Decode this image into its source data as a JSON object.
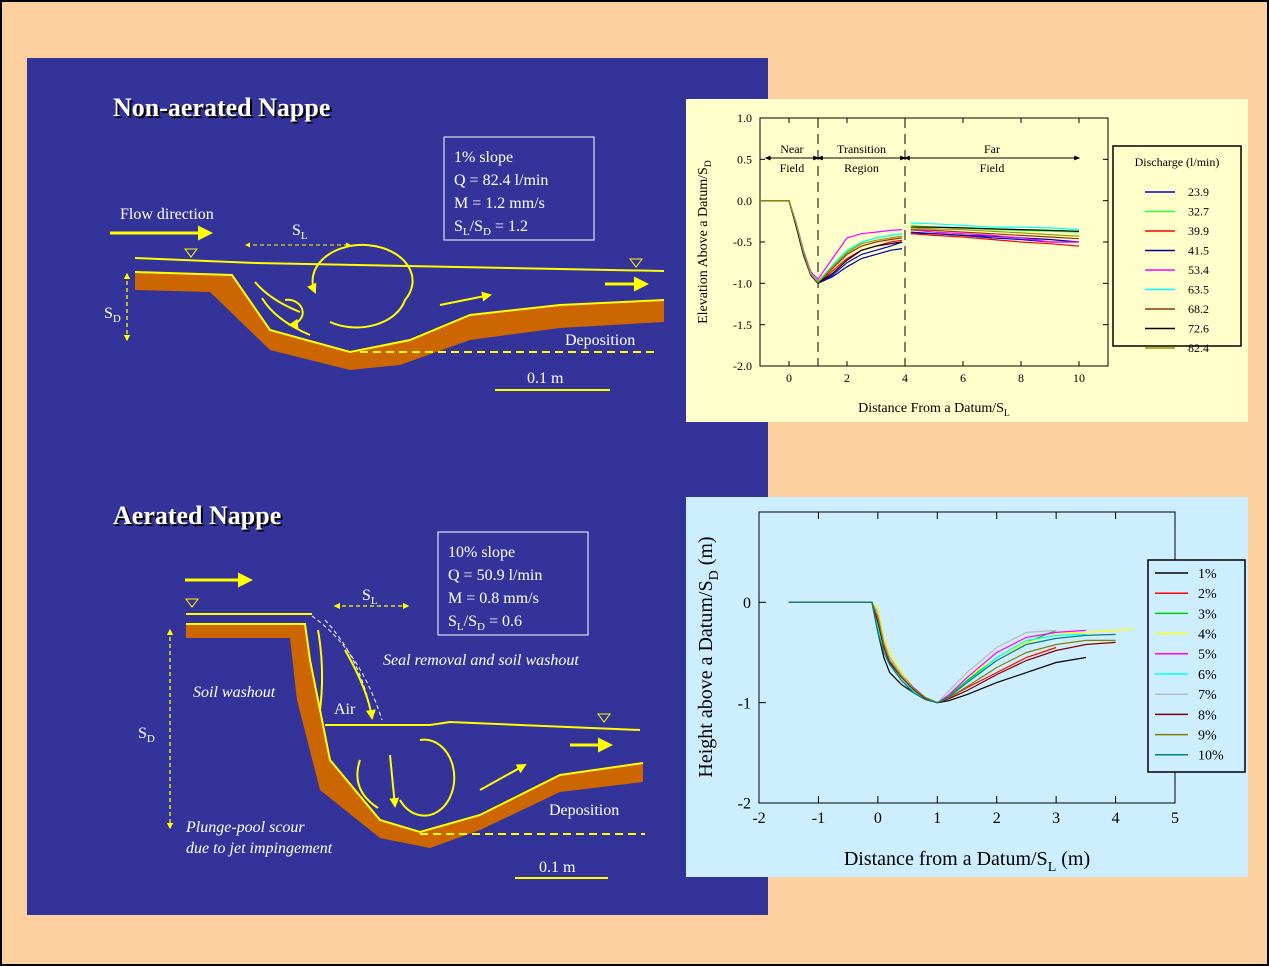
{
  "diagrams": [
    {
      "title": "Non-aerated Nappe",
      "info": [
        "1% slope",
        "Q = 82.4 l/min",
        "M = 1.2 mm/s"
      ],
      "ratio": [
        "S",
        "L",
        "/S",
        "D",
        " = 1.2"
      ],
      "flow": "Flow direction",
      "sl": [
        "S",
        "L"
      ],
      "sd": [
        "S",
        "D"
      ],
      "deposition": "Deposition",
      "scale": "0.1 m"
    },
    {
      "title": "Aerated Nappe",
      "info": [
        "10% slope",
        "Q = 50.9 l/min",
        "M = 0.8 mm/s"
      ],
      "ratio": [
        "S",
        "L",
        "/S",
        "D",
        " = 0.6"
      ],
      "sl": [
        "S",
        "L"
      ],
      "sd": [
        "S",
        "D"
      ],
      "notes": [
        "Seal removal and soil washout",
        "Soil washout",
        "Air",
        "Plunge-pool scour",
        "due to jet impingement"
      ],
      "deposition": "Deposition",
      "scale": "0.1 m"
    }
  ],
  "chart_data": [
    {
      "type": "line",
      "background": "#ffffcc",
      "xlabel": {
        "text": "Distance From a Datum/S",
        "sub": "L"
      },
      "ylabel": {
        "text": "Elevation Above a Datum/S",
        "sub": "D"
      },
      "legend_title": "Discharge (l/min)",
      "xlim": [
        -1,
        11
      ],
      "xticks": [
        0,
        2,
        4,
        6,
        8,
        10
      ],
      "ylim": [
        -2,
        1
      ],
      "yticks": [
        {
          "value": -2,
          "label": "-2.0"
        },
        -1.5,
        {
          "value": -1,
          "label": "-1.0"
        },
        -0.5,
        {
          "value": 0,
          "label": "0.0"
        },
        0.5,
        {
          "value": 1,
          "label": "1.0"
        }
      ],
      "vlines": [
        1,
        4
      ],
      "regions": [
        {
          "label": [
            "Near",
            "Field"
          ],
          "from": -0.8,
          "to": 1
        },
        {
          "label": [
            "Transition",
            "Region"
          ],
          "from": 1,
          "to": 4
        },
        {
          "label": [
            "Far",
            "Field"
          ],
          "from": 4,
          "to": 10
        }
      ],
      "x": [
        -1,
        0,
        0.25,
        0.5,
        0.75,
        1,
        1.5,
        2,
        2.5,
        3,
        3.5,
        3.9,
        4,
        4.2,
        5,
        6,
        7,
        8,
        9,
        10
      ],
      "series": [
        {
          "name": "23.9",
          "color": "#0000cc",
          "values": [
            0,
            0,
            -0.3,
            -0.65,
            -0.9,
            -1.0,
            -0.9,
            -0.75,
            -0.65,
            -0.6,
            -0.55,
            -0.5,
            null,
            -0.4,
            -0.4,
            -0.42,
            -0.45,
            -0.47,
            -0.5,
            -0.5
          ]
        },
        {
          "name": "32.7",
          "color": "#33ff33",
          "values": [
            0,
            0,
            -0.28,
            -0.62,
            -0.88,
            -0.98,
            -0.8,
            -0.62,
            -0.5,
            -0.45,
            -0.42,
            -0.4,
            null,
            -0.3,
            -0.32,
            -0.33,
            -0.35,
            -0.36,
            -0.37,
            -0.38
          ]
        },
        {
          "name": "39.9",
          "color": "#ff0000",
          "values": [
            0,
            0,
            -0.3,
            -0.64,
            -0.9,
            -1.0,
            -0.85,
            -0.7,
            -0.6,
            -0.55,
            -0.5,
            -0.48,
            null,
            -0.4,
            -0.42,
            -0.44,
            -0.47,
            -0.5,
            -0.52,
            -0.55
          ]
        },
        {
          "name": "41.5",
          "color": "#000099",
          "values": [
            0,
            0,
            -0.32,
            -0.66,
            -0.9,
            -1.0,
            -0.92,
            -0.8,
            -0.7,
            -0.65,
            -0.6,
            -0.58,
            null,
            -0.38,
            -0.4,
            -0.42,
            -0.43,
            -0.45,
            -0.47,
            -0.5
          ]
        },
        {
          "name": "53.4",
          "color": "#ff00ff",
          "values": [
            0,
            0,
            -0.27,
            -0.6,
            -0.86,
            -0.95,
            -0.7,
            -0.45,
            -0.4,
            -0.38,
            -0.36,
            -0.35,
            null,
            -0.35,
            -0.38,
            -0.4,
            -0.42,
            -0.45,
            -0.5,
            -0.5
          ]
        },
        {
          "name": "63.5",
          "color": "#00ffff",
          "values": [
            0,
            0,
            -0.28,
            -0.62,
            -0.88,
            -0.98,
            -0.78,
            -0.6,
            -0.5,
            -0.45,
            -0.42,
            -0.4,
            null,
            -0.27,
            -0.28,
            -0.3,
            -0.32,
            -0.32,
            -0.33,
            -0.35
          ]
        },
        {
          "name": "68.2",
          "color": "#993300",
          "values": [
            0,
            0,
            -0.3,
            -0.64,
            -0.9,
            -1.0,
            -0.82,
            -0.65,
            -0.55,
            -0.5,
            -0.47,
            -0.45,
            null,
            -0.35,
            -0.36,
            -0.38,
            -0.4,
            -0.42,
            -0.44,
            -0.46
          ]
        },
        {
          "name": "72.6",
          "color": "#000000",
          "values": [
            0,
            0,
            -0.31,
            -0.65,
            -0.9,
            -1.0,
            -0.88,
            -0.72,
            -0.6,
            -0.55,
            -0.52,
            -0.5,
            null,
            -0.32,
            -0.32,
            -0.33,
            -0.34,
            -0.35,
            -0.36,
            -0.37
          ]
        },
        {
          "name": "82.4",
          "color": "#999900",
          "values": [
            0,
            0,
            -0.29,
            -0.63,
            -0.89,
            -0.99,
            -0.8,
            -0.63,
            -0.52,
            -0.48,
            -0.45,
            -0.43,
            null,
            -0.33,
            -0.34,
            -0.35,
            -0.37,
            -0.39,
            -0.41,
            -0.43
          ]
        }
      ]
    },
    {
      "type": "line",
      "background": "#cceeff",
      "xlabel": {
        "text": "Distance from a Datum/S",
        "sub": "L",
        "after": " (m)"
      },
      "ylabel": {
        "text": "Height above a Datum/S",
        "sub": "D",
        "after": " (m)"
      },
      "xlim": [
        -2,
        5
      ],
      "xticks": [
        -2,
        -1,
        0,
        1,
        2,
        3,
        4,
        5
      ],
      "ylim": [
        -2,
        0.9
      ],
      "yticks": [
        -2,
        -1,
        0
      ],
      "x": [
        -1.5,
        -0.1,
        0,
        0.1,
        0.2,
        0.4,
        0.6,
        0.8,
        1,
        1.2,
        1.5,
        2,
        2.5,
        3,
        3.5,
        4,
        4.3
      ],
      "series": [
        {
          "name": "1%",
          "color": "#000000",
          "values": [
            0,
            0,
            -0.3,
            -0.55,
            -0.7,
            -0.82,
            -0.9,
            -0.97,
            -1.0,
            -0.98,
            -0.92,
            -0.8,
            -0.7,
            -0.6,
            -0.55,
            null,
            null
          ]
        },
        {
          "name": "2%",
          "color": "#ff0000",
          "values": [
            0,
            0,
            -0.2,
            -0.45,
            -0.6,
            -0.75,
            -0.85,
            -0.95,
            -1.0,
            -0.95,
            -0.85,
            -0.7,
            -0.55,
            -0.45,
            null,
            null,
            null
          ]
        },
        {
          "name": "3%",
          "color": "#00cc00",
          "values": [
            0,
            0,
            -0.1,
            -0.4,
            -0.55,
            -0.72,
            -0.85,
            -0.95,
            -1.0,
            -0.93,
            -0.78,
            -0.55,
            -0.4,
            -0.28,
            null,
            null,
            null
          ]
        },
        {
          "name": "4%",
          "color": "#ffff00",
          "values": [
            0,
            0,
            -0.05,
            -0.35,
            -0.5,
            -0.7,
            -0.85,
            -0.95,
            -1.0,
            -0.92,
            -0.75,
            -0.55,
            -0.4,
            -0.32,
            -0.3,
            -0.28,
            -0.27
          ]
        },
        {
          "name": "5%",
          "color": "#ff00ff",
          "values": [
            0,
            0,
            -0.15,
            -0.4,
            -0.55,
            -0.72,
            -0.85,
            -0.95,
            -1.0,
            -0.92,
            -0.75,
            -0.5,
            -0.35,
            -0.3,
            -0.28,
            null,
            null
          ]
        },
        {
          "name": "6%",
          "color": "#00ffff",
          "values": [
            0,
            0,
            -0.25,
            -0.5,
            -0.62,
            -0.78,
            -0.88,
            -0.97,
            -1.0,
            -0.94,
            -0.8,
            -0.55,
            -0.38,
            -0.33,
            -0.32,
            null,
            null
          ]
        },
        {
          "name": "7%",
          "color": "#bbbbbb",
          "values": [
            0,
            0,
            -0.1,
            -0.38,
            -0.55,
            -0.72,
            -0.86,
            -0.95,
            -1.0,
            -0.88,
            -0.7,
            -0.45,
            -0.3,
            -0.28,
            null,
            null,
            null
          ]
        },
        {
          "name": "8%",
          "color": "#800000",
          "values": [
            0,
            0,
            -0.2,
            -0.45,
            -0.6,
            -0.75,
            -0.87,
            -0.96,
            -1.0,
            -0.96,
            -0.88,
            -0.72,
            -0.58,
            -0.48,
            -0.42,
            -0.4,
            null
          ]
        },
        {
          "name": "9%",
          "color": "#808000",
          "values": [
            0,
            0,
            -0.15,
            -0.42,
            -0.58,
            -0.74,
            -0.86,
            -0.95,
            -1.0,
            -0.95,
            -0.84,
            -0.65,
            -0.5,
            -0.42,
            -0.38,
            -0.38,
            null
          ]
        },
        {
          "name": "10%",
          "color": "#008080",
          "values": [
            0,
            0,
            -0.3,
            -0.5,
            -0.62,
            -0.78,
            -0.9,
            -0.97,
            -1.0,
            -0.94,
            -0.8,
            -0.58,
            -0.42,
            -0.36,
            -0.33,
            -0.32,
            null
          ]
        }
      ]
    }
  ]
}
